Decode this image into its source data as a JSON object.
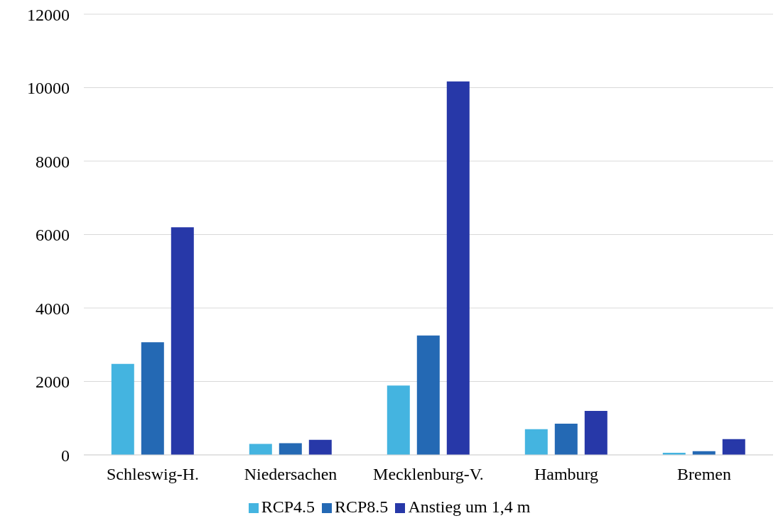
{
  "chart_data": {
    "type": "bar",
    "categories": [
      "Schleswig-H.",
      "Niedersachen",
      "Mecklenburg-V.",
      "Hamburg",
      "Bremen"
    ],
    "series": [
      {
        "name": "RCP4.5",
        "color": "#44b4e0",
        "values": [
          2480,
          300,
          1890,
          700,
          60
        ]
      },
      {
        "name": "RCP8.5",
        "color": "#2469b4",
        "values": [
          3070,
          320,
          3250,
          850,
          100
        ]
      },
      {
        "name": "Anstieg um 1,4 m",
        "color": "#2738a8",
        "values": [
          6200,
          410,
          10170,
          1200,
          430
        ]
      }
    ],
    "ylim": [
      0,
      12000
    ],
    "yticks": [
      0,
      2000,
      4000,
      6000,
      8000,
      10000,
      12000
    ],
    "grid": "y",
    "legend": "bottom"
  }
}
